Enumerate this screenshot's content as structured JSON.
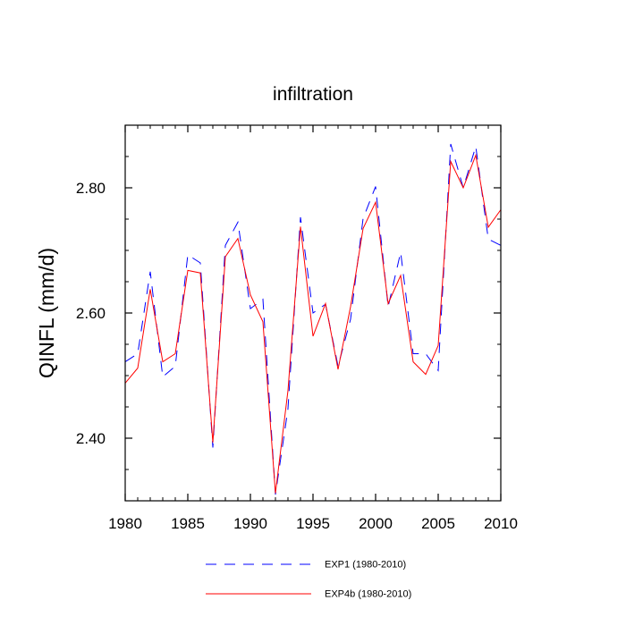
{
  "chart_data": {
    "type": "line",
    "title": "infiltration",
    "xlabel": "",
    "ylabel": "QINFL  (mm/d)",
    "xlim": [
      1980,
      2010
    ],
    "ylim": [
      2.3,
      2.9
    ],
    "x_ticks": [
      1980,
      1985,
      1990,
      1995,
      2000,
      2005,
      2010
    ],
    "y_ticks": [
      "2.40",
      "2.60",
      "2.80"
    ],
    "y_tick_values": [
      2.4,
      2.6,
      2.8
    ],
    "x_minor_step": 1,
    "y_minor_step": 0.05,
    "grid": false,
    "legend_position": "bottom",
    "x": [
      1980,
      1981,
      1982,
      1983,
      1984,
      1985,
      1986,
      1987,
      1988,
      1989,
      1990,
      1991,
      1992,
      1993,
      1994,
      1995,
      1996,
      1997,
      1998,
      1999,
      2000,
      2001,
      2002,
      2003,
      2004,
      2005,
      2006,
      2007,
      2008,
      2009,
      2010
    ],
    "series": [
      {
        "name": "EXP1 (1980-2010)",
        "color": "#0000ff",
        "style": "dashed",
        "values": [
          2.522,
          2.535,
          2.666,
          2.498,
          2.515,
          2.693,
          2.68,
          2.385,
          2.708,
          2.745,
          2.607,
          2.622,
          2.31,
          2.447,
          2.753,
          2.6,
          2.614,
          2.515,
          2.59,
          2.751,
          2.802,
          2.61,
          2.697,
          2.535,
          2.535,
          2.508,
          2.87,
          2.8,
          2.866,
          2.718,
          2.708
        ]
      },
      {
        "name": "EXP4b (1980-2010)",
        "color": "#ff0000",
        "style": "solid",
        "values": [
          2.488,
          2.512,
          2.638,
          2.522,
          2.535,
          2.668,
          2.664,
          2.393,
          2.69,
          2.719,
          2.629,
          2.586,
          2.312,
          2.476,
          2.738,
          2.563,
          2.615,
          2.51,
          2.61,
          2.735,
          2.777,
          2.615,
          2.66,
          2.522,
          2.502,
          2.548,
          2.842,
          2.8,
          2.852,
          2.737,
          2.765
        ]
      }
    ]
  }
}
